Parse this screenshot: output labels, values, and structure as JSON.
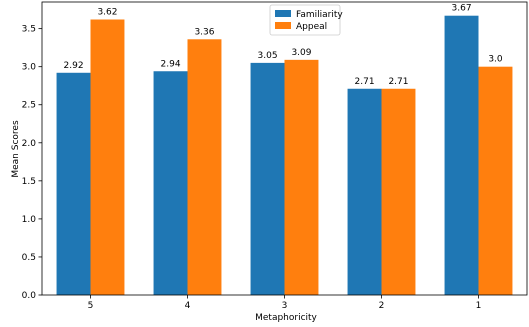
{
  "chart_data": {
    "type": "bar",
    "title": "",
    "xlabel": "Metaphoricity",
    "ylabel": "Mean Scores",
    "categories": [
      "5",
      "4",
      "3",
      "2",
      "1"
    ],
    "series": [
      {
        "name": "Familiarity",
        "color": "#1f77b4",
        "values": [
          2.92,
          2.94,
          3.05,
          2.71,
          3.67
        ],
        "labels": [
          "2.92",
          "2.94",
          "3.05",
          "2.71",
          "3.67"
        ]
      },
      {
        "name": "Appeal",
        "color": "#ff7f0e",
        "values": [
          3.62,
          3.36,
          3.09,
          2.71,
          3.0
        ],
        "labels": [
          "3.62",
          "3.36",
          "3.09",
          "2.71",
          "3.0"
        ]
      }
    ],
    "ylim": [
      0,
      3.85
    ],
    "yticks": [
      "0.0",
      "0.5",
      "1.0",
      "1.5",
      "2.0",
      "2.5",
      "3.0",
      "3.5"
    ],
    "legend_position": "top-center",
    "grid": false
  }
}
